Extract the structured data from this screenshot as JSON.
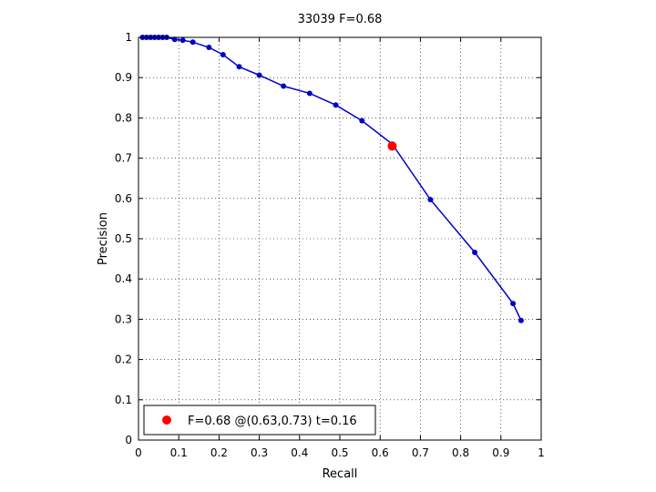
{
  "chart_data": {
    "type": "line",
    "title": "33039 F=0.68",
    "xlabel": "Recall",
    "ylabel": "Precision",
    "xlim": [
      0,
      1
    ],
    "ylim": [
      0,
      1
    ],
    "grid": true,
    "xticks": [
      "0",
      "0.1",
      "0.2",
      "0.3",
      "0.4",
      "0.5",
      "0.6",
      "0.7",
      "0.8",
      "0.9",
      "1"
    ],
    "yticks": [
      "0",
      "0.1",
      "0.2",
      "0.3",
      "0.4",
      "0.5",
      "0.6",
      "0.7",
      "0.8",
      "0.9",
      "1"
    ],
    "series": [
      {
        "color": "#0000cc",
        "x": [
          0.01,
          0.02,
          0.03,
          0.04,
          0.05,
          0.06,
          0.07,
          0.09,
          0.11,
          0.135,
          0.175,
          0.21,
          0.25,
          0.3,
          0.36,
          0.425,
          0.49,
          0.555,
          0.63,
          0.725,
          0.835,
          0.93,
          0.95
        ],
        "y": [
          1.0,
          1.0,
          1.0,
          1.0,
          1.0,
          1.0,
          1.0,
          0.995,
          0.993,
          0.988,
          0.975,
          0.957,
          0.927,
          0.906,
          0.879,
          0.861,
          0.832,
          0.793,
          0.735,
          0.597,
          0.466,
          0.339,
          0.297
        ]
      }
    ],
    "highlight": {
      "x": 0.63,
      "y": 0.73,
      "color": "#ff0000"
    },
    "legend": {
      "label": "F=0.68 @(0.63,0.73) t=0.16",
      "position": "bottom-left",
      "marker_color": "#ff0000"
    }
  }
}
